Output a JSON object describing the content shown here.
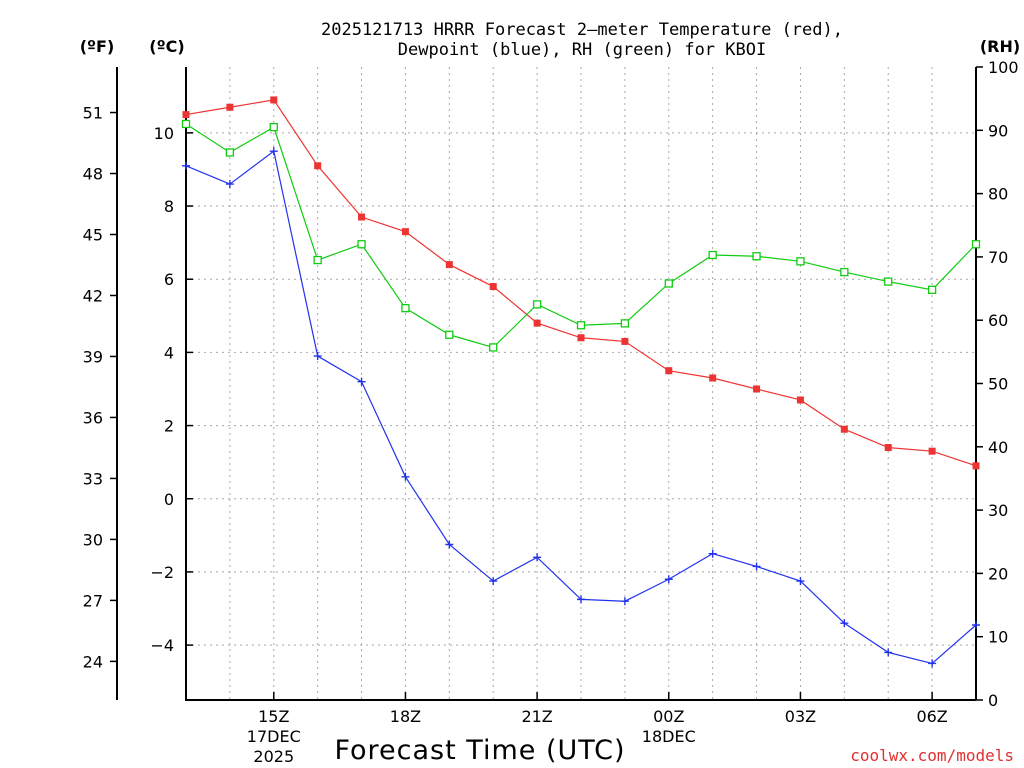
{
  "title_line1": "2025121713 HRRR Forecast 2—meter Temperature (red),",
  "title_line2": "Dewpoint (blue), RH (green) for KBOI",
  "unit_f": "(ºF)",
  "unit_c": "(ºC)",
  "unit_rh": "(RH)",
  "credit": "coolwx.com/models",
  "colors": {
    "temp": "#ee3333",
    "dewpoint": "#2233ee",
    "rh": "#11cc11",
    "grid": "#a8a8a8"
  },
  "chart_data": {
    "type": "line",
    "title": "2025121713 HRRR Forecast 2-meter Temperature (red), Dewpoint (blue), RH (green) for KBOI",
    "xlabel": "Forecast Time (UTC)",
    "ylabel_left": "(ºC)",
    "ylabel_left_outer": "(ºF)",
    "ylabel_right": "(RH)",
    "x_hours": [
      13,
      14,
      15,
      16,
      17,
      18,
      19,
      20,
      21,
      22,
      23,
      24,
      25,
      26,
      27,
      28,
      29,
      30,
      31
    ],
    "xlim": [
      13,
      31
    ],
    "ylim_c": [
      -5.5,
      11.8
    ],
    "ylim_rh": [
      0,
      100
    ],
    "c_ticks": [
      10,
      8,
      6,
      4,
      2,
      0,
      -2,
      -4
    ],
    "c_tick_labels": [
      "10",
      "8",
      "6",
      "4",
      "2",
      "0",
      "−2",
      "−4"
    ],
    "f_ticks": [
      51,
      48,
      45,
      42,
      39,
      36,
      33,
      30,
      27,
      24
    ],
    "rh_ticks": [
      100,
      90,
      80,
      70,
      60,
      50,
      40,
      30,
      20,
      10,
      0
    ],
    "x_ticks": [
      {
        "hour": 15,
        "label": "15Z",
        "sub1": "17DEC",
        "sub2": "2025"
      },
      {
        "hour": 18,
        "label": "18Z",
        "sub1": "",
        "sub2": ""
      },
      {
        "hour": 21,
        "label": "21Z",
        "sub1": "",
        "sub2": ""
      },
      {
        "hour": 24,
        "label": "00Z",
        "sub1": "18DEC",
        "sub2": ""
      },
      {
        "hour": 27,
        "label": "03Z",
        "sub1": "",
        "sub2": ""
      },
      {
        "hour": 30,
        "label": "06Z",
        "sub1": "",
        "sub2": ""
      }
    ],
    "series": [
      {
        "name": "Temperature (ºC)",
        "axis": "c",
        "marker": "filled-square",
        "color": "#ee3333",
        "values": [
          10.5,
          10.7,
          10.9,
          9.1,
          7.7,
          7.3,
          6.4,
          5.8,
          4.8,
          4.4,
          4.3,
          3.5,
          3.3,
          3.0,
          2.7,
          1.9,
          1.4,
          1.3,
          0.9
        ]
      },
      {
        "name": "Dewpoint (ºC)",
        "axis": "c",
        "marker": "plus",
        "color": "#2233ee",
        "values": [
          9.1,
          8.6,
          9.5,
          3.9,
          3.2,
          0.6,
          -1.25,
          -2.25,
          -1.6,
          -2.75,
          -2.8,
          -2.2,
          -1.5,
          -1.85,
          -2.25,
          -3.4,
          -4.2,
          -4.5,
          -3.45
        ]
      },
      {
        "name": "RH (%)",
        "axis": "rh",
        "marker": "open-square",
        "color": "#11cc11",
        "values": [
          91,
          86.5,
          90.5,
          69.5,
          72,
          61.9,
          57.7,
          55.7,
          62.5,
          59.2,
          59.5,
          65.8,
          70.3,
          70.1,
          69.3,
          67.6,
          66.1,
          64.8,
          72
        ]
      }
    ]
  }
}
